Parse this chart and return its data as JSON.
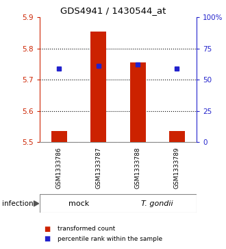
{
  "title": "GDS4941 / 1430544_at",
  "samples": [
    "GSM1333786",
    "GSM1333787",
    "GSM1333788",
    "GSM1333789"
  ],
  "ylim_left": [
    5.5,
    5.9
  ],
  "ylim_right": [
    0,
    100
  ],
  "yticks_left": [
    5.5,
    5.6,
    5.7,
    5.8,
    5.9
  ],
  "yticks_right": [
    0,
    25,
    50,
    75,
    100
  ],
  "ytick_right_labels": [
    "0",
    "25",
    "50",
    "75",
    "100%"
  ],
  "bar_bottom": 5.5,
  "bar_tops": [
    5.535,
    5.855,
    5.755,
    5.535
  ],
  "percentile_values": [
    5.735,
    5.745,
    5.748,
    5.735
  ],
  "bar_color": "#cc2200",
  "percentile_color": "#2222cc",
  "grid_color": "#000000",
  "bg_color": "#ffffff",
  "left_axis_color": "#cc2200",
  "right_axis_color": "#2222cc",
  "sample_box_color": "#cccccc",
  "group_color": "#90ee90",
  "legend_items": [
    "transformed count",
    "percentile rank within the sample"
  ],
  "infection_label": "infection",
  "bar_width": 0.4
}
